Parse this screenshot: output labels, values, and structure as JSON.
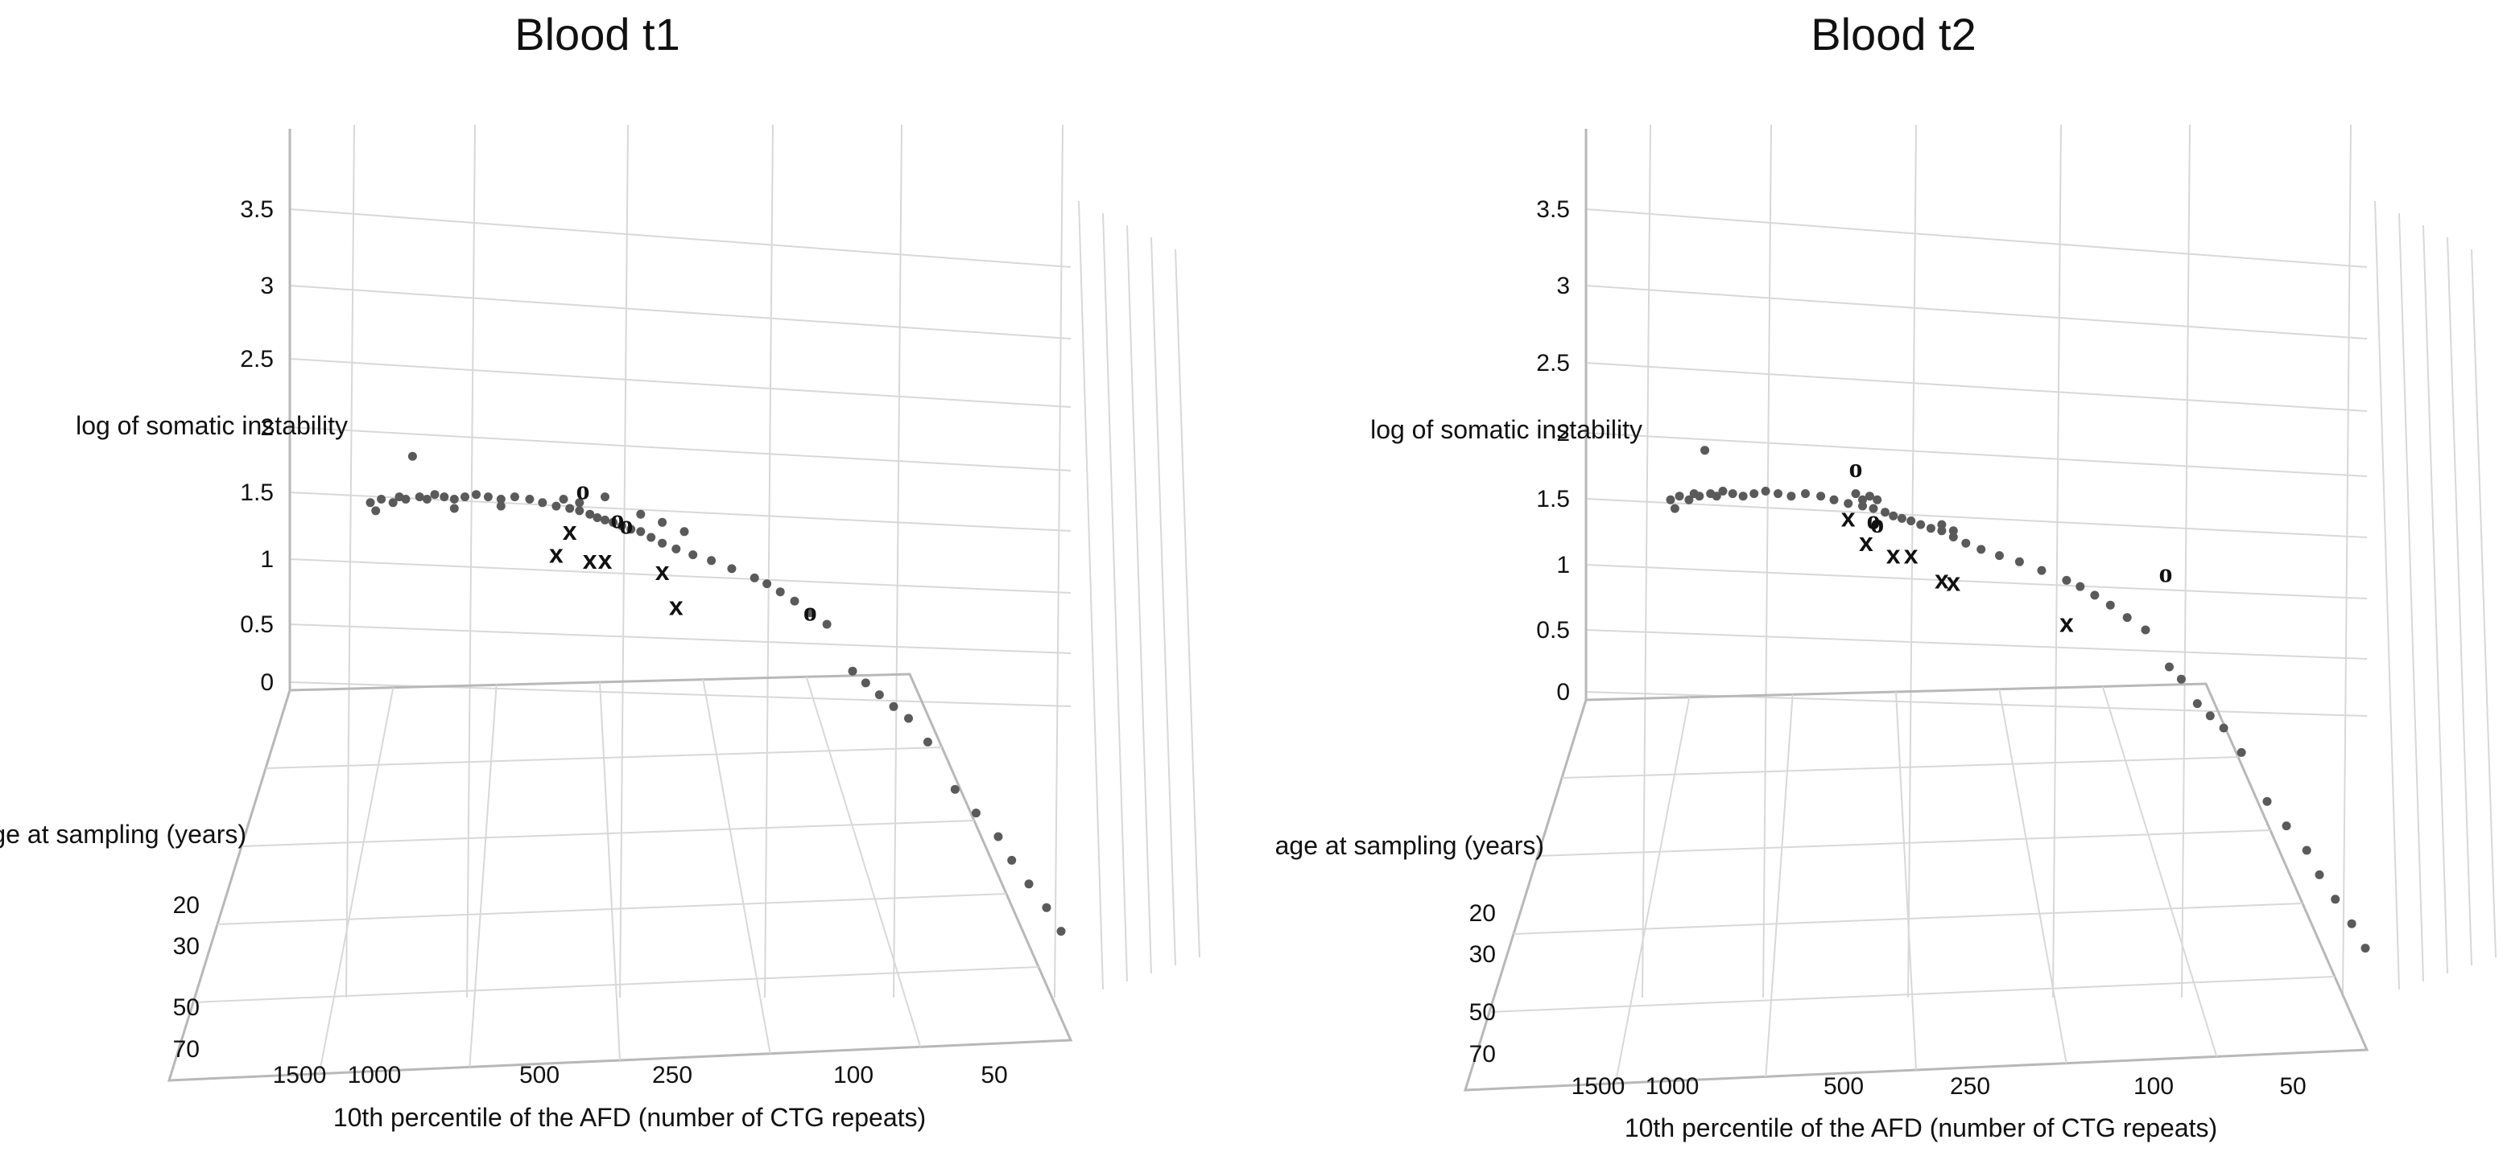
{
  "chart_data": [
    {
      "type": "scatter",
      "title": "Blood t1",
      "zlabel": "log of somatic instability",
      "ylabel": "age at sampling (years)",
      "xlabel": "10th percentile of the AFD (number of CTG repeats)",
      "z_ticks": [
        "0",
        "0.5",
        "1",
        "1.5",
        "2",
        "2.5",
        "3",
        "3.5"
      ],
      "y_ticks": [
        "20",
        "30",
        "50",
        "70"
      ],
      "x_ticks": [
        "1500",
        "1000",
        "500",
        "250",
        "100",
        "50"
      ],
      "marker_x": "x",
      "marker_o": "o",
      "series": [
        {
          "name": "dots",
          "points": [
            [
              1500,
              1.55
            ],
            [
              1450,
              1.48
            ],
            [
              1400,
              1.58
            ],
            [
              1300,
              1.55
            ],
            [
              1250,
              1.6
            ],
            [
              1200,
              1.58
            ],
            [
              1100,
              1.6
            ],
            [
              1050,
              1.58
            ],
            [
              1000,
              1.62
            ],
            [
              950,
              1.6
            ],
            [
              900,
              1.58
            ],
            [
              850,
              1.6
            ],
            [
              800,
              1.62
            ],
            [
              750,
              1.6
            ],
            [
              700,
              1.58
            ],
            [
              650,
              1.6
            ],
            [
              600,
              1.58
            ],
            [
              560,
              1.55
            ],
            [
              520,
              1.52
            ],
            [
              480,
              1.5
            ],
            [
              450,
              1.48
            ],
            [
              420,
              1.45
            ],
            [
              400,
              1.42
            ],
            [
              380,
              1.4
            ],
            [
              360,
              1.38
            ],
            [
              340,
              1.35
            ],
            [
              320,
              1.32
            ],
            [
              300,
              1.3
            ],
            [
              280,
              1.25
            ],
            [
              260,
              1.2
            ],
            [
              240,
              1.15
            ],
            [
              220,
              1.1
            ],
            [
              200,
              1.05
            ],
            [
              180,
              0.98
            ],
            [
              160,
              0.9
            ],
            [
              150,
              0.85
            ],
            [
              140,
              0.78
            ],
            [
              130,
              0.7
            ],
            [
              120,
              0.6
            ],
            [
              110,
              0.5
            ],
            [
              1150,
              1.95
            ],
            [
              900,
              1.5
            ],
            [
              700,
              1.52
            ],
            [
              500,
              1.58
            ],
            [
              450,
              1.55
            ],
            [
              380,
              1.6
            ],
            [
              300,
              1.45
            ],
            [
              260,
              1.38
            ],
            [
              230,
              1.3
            ],
            [
              100,
              0.2
            ],
            [
              95,
              0.15
            ],
            [
              90,
              0.1
            ],
            [
              85,
              0.05
            ],
            [
              80,
              0.0
            ],
            [
              75,
              -0.1
            ],
            [
              70,
              -0.3
            ],
            [
              65,
              -0.4
            ],
            [
              60,
              -0.5
            ],
            [
              58,
              -0.6
            ],
            [
              55,
              -0.7
            ],
            [
              52,
              -0.8
            ],
            [
              50,
              -0.9
            ]
          ]
        },
        {
          "name": "x",
          "points": [
            [
              480,
              1.3
            ],
            [
              420,
              1.05
            ],
            [
              380,
              1.05
            ],
            [
              520,
              1.1
            ],
            [
              260,
              0.95
            ],
            [
              240,
              0.65
            ]
          ]
        },
        {
          "name": "o",
          "points": [
            [
              440,
              1.65
            ],
            [
              350,
              1.4
            ],
            [
              330,
              1.35
            ],
            [
              120,
              0.6
            ]
          ]
        }
      ]
    },
    {
      "type": "scatter",
      "title": "Blood t2",
      "zlabel": "log of somatic instability",
      "ylabel": "age at sampling (years)",
      "xlabel": "10th percentile of the AFD (number of CTG repeats)",
      "z_ticks": [
        "0",
        "0.5",
        "1",
        "1.5",
        "2",
        "2.5",
        "3",
        "3.5"
      ],
      "y_ticks": [
        "20",
        "30",
        "50",
        "70"
      ],
      "x_ticks": [
        "1500",
        "1000",
        "500",
        "250",
        "100",
        "50"
      ],
      "marker_x": "x",
      "marker_o": "o",
      "series": [
        {
          "name": "dots",
          "points": [
            [
              1500,
              1.55
            ],
            [
              1450,
              1.48
            ],
            [
              1400,
              1.58
            ],
            [
              1300,
              1.55
            ],
            [
              1250,
              1.6
            ],
            [
              1200,
              1.58
            ],
            [
              1100,
              1.6
            ],
            [
              1050,
              1.58
            ],
            [
              1000,
              1.62
            ],
            [
              950,
              1.6
            ],
            [
              900,
              1.58
            ],
            [
              850,
              1.6
            ],
            [
              800,
              1.62
            ],
            [
              750,
              1.6
            ],
            [
              700,
              1.58
            ],
            [
              650,
              1.6
            ],
            [
              600,
              1.58
            ],
            [
              560,
              1.55
            ],
            [
              520,
              1.52
            ],
            [
              480,
              1.5
            ],
            [
              450,
              1.48
            ],
            [
              420,
              1.45
            ],
            [
              400,
              1.42
            ],
            [
              380,
              1.4
            ],
            [
              360,
              1.38
            ],
            [
              340,
              1.35
            ],
            [
              320,
              1.32
            ],
            [
              300,
              1.3
            ],
            [
              280,
              1.25
            ],
            [
              260,
              1.2
            ],
            [
              240,
              1.15
            ],
            [
              220,
              1.1
            ],
            [
              200,
              1.05
            ],
            [
              180,
              0.98
            ],
            [
              160,
              0.9
            ],
            [
              150,
              0.85
            ],
            [
              140,
              0.78
            ],
            [
              130,
              0.7
            ],
            [
              120,
              0.6
            ],
            [
              110,
              0.5
            ],
            [
              1150,
              1.95
            ],
            [
              500,
              1.6
            ],
            [
              480,
              1.55
            ],
            [
              460,
              1.58
            ],
            [
              440,
              1.55
            ],
            [
              300,
              1.35
            ],
            [
              280,
              1.3
            ],
            [
              100,
              0.25
            ],
            [
              95,
              0.2
            ],
            [
              90,
              0.1
            ],
            [
              85,
              0.05
            ],
            [
              80,
              0.0
            ],
            [
              75,
              -0.1
            ],
            [
              70,
              -0.3
            ],
            [
              65,
              -0.4
            ],
            [
              60,
              -0.5
            ],
            [
              58,
              -0.6
            ],
            [
              55,
              -0.7
            ],
            [
              52,
              -0.8
            ],
            [
              50,
              -0.9
            ]
          ]
        },
        {
          "name": "x",
          "points": [
            [
              520,
              1.4
            ],
            [
              470,
              1.2
            ],
            [
              400,
              1.1
            ],
            [
              360,
              1.1
            ],
            [
              300,
              0.9
            ],
            [
              280,
              0.88
            ],
            [
              160,
              0.55
            ]
          ]
        },
        {
          "name": "o",
          "points": [
            [
              500,
              1.8
            ],
            [
              450,
              1.38
            ],
            [
              440,
              1.35
            ],
            [
              100,
              0.95
            ]
          ]
        }
      ]
    }
  ]
}
